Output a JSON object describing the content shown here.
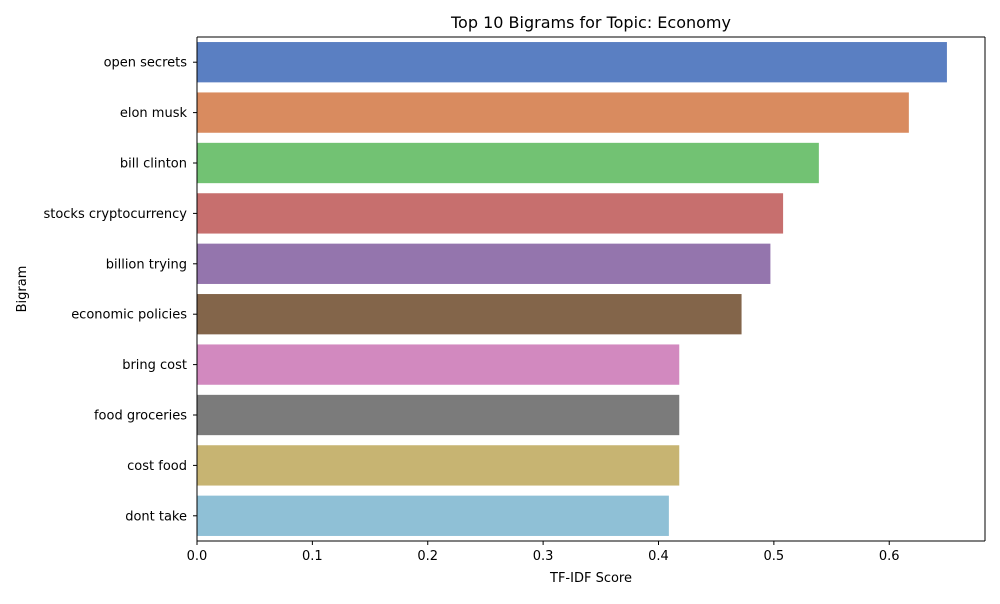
{
  "chart_data": {
    "type": "bar",
    "orientation": "horizontal",
    "title": "Top 10 Bigrams for Topic: Economy",
    "xlabel": "TF-IDF Score",
    "ylabel": "Bigram",
    "xlim": [
      0,
      0.683
    ],
    "xticks": [
      "0.0",
      "0.1",
      "0.2",
      "0.3",
      "0.4",
      "0.5",
      "0.6"
    ],
    "grid": false,
    "categories": [
      "open secrets",
      "elon musk",
      "bill clinton",
      "stocks cryptocurrency",
      "billion trying",
      "economic policies",
      "bring cost",
      "food groceries",
      "cost food",
      "dont take"
    ],
    "values": [
      0.65,
      0.617,
      0.539,
      0.508,
      0.497,
      0.472,
      0.418,
      0.418,
      0.418,
      0.409
    ],
    "colors": [
      "#5a7fc2",
      "#d98b5f",
      "#72c273",
      "#c76f6e",
      "#9475ad",
      "#83654a",
      "#d289bf",
      "#7b7b7b",
      "#c7b472",
      "#8fc0d6"
    ]
  }
}
